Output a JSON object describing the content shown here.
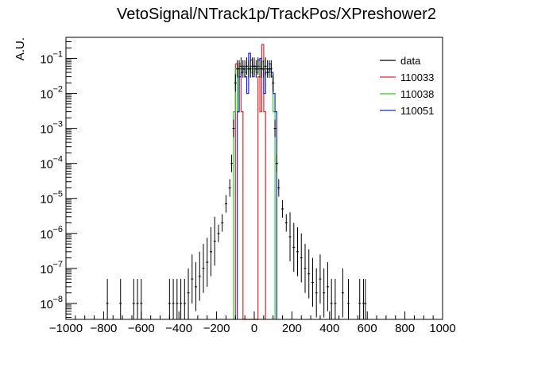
{
  "chart_data": {
    "type": "line",
    "title": "VetoSignal/NTrack1p/TrackPos/XPreshower2",
    "xlabel": "",
    "ylabel": "A.U.",
    "x_range": [
      -1000,
      1000
    ],
    "y_range_log": [
      3.5e-09,
      0.4
    ],
    "yscale": "log",
    "grid": false,
    "legend_position": "top-right",
    "x_ticks": [
      {
        "value": -1000,
        "label": "−1000"
      },
      {
        "value": -800,
        "label": "−800"
      },
      {
        "value": -600,
        "label": "−600"
      },
      {
        "value": -400,
        "label": "−400"
      },
      {
        "value": -200,
        "label": "−200"
      },
      {
        "value": 0,
        "label": "0"
      },
      {
        "value": 200,
        "label": "200"
      },
      {
        "value": 400,
        "label": "400"
      },
      {
        "value": 600,
        "label": "600"
      },
      {
        "value": 800,
        "label": "800"
      },
      {
        "value": 1000,
        "label": "1000"
      }
    ],
    "y_ticks": [
      {
        "exp": -8,
        "base": "10",
        "power": "−8"
      },
      {
        "exp": -7,
        "base": "10",
        "power": "−7"
      },
      {
        "exp": -6,
        "base": "10",
        "power": "−6"
      },
      {
        "exp": -5,
        "base": "10",
        "power": "−5"
      },
      {
        "exp": -4,
        "base": "10",
        "power": "−4"
      },
      {
        "exp": -3,
        "base": "10",
        "power": "−3"
      },
      {
        "exp": -2,
        "base": "10",
        "power": "−2"
      },
      {
        "exp": -1,
        "base": "10",
        "power": "−1"
      }
    ],
    "series": [
      {
        "name": "data",
        "style": "points",
        "color": "#000000",
        "points": [
          [
            -780,
            1e-08
          ],
          [
            -710,
            1e-08
          ],
          [
            -640,
            1e-08
          ],
          [
            -620,
            1e-08
          ],
          [
            -600,
            1e-08
          ],
          [
            -450,
            1e-08
          ],
          [
            -430,
            1e-08
          ],
          [
            -410,
            1e-08
          ],
          [
            -390,
            1e-08
          ],
          [
            -370,
            1e-08
          ],
          [
            -350,
            2e-08
          ],
          [
            -330,
            5e-08
          ],
          [
            -310,
            3e-08
          ],
          [
            -290,
            6e-08
          ],
          [
            -270,
            1e-07
          ],
          [
            -250,
            1.5e-07
          ],
          [
            -230,
            3e-07
          ],
          [
            -210,
            6e-07
          ],
          [
            -190,
            1e-06
          ],
          [
            -170,
            2e-06
          ],
          [
            -150,
            7e-06
          ],
          [
            -130,
            2e-05
          ],
          [
            -120,
            0.0001
          ],
          [
            -110,
            0.001
          ],
          [
            -100,
            0.02
          ],
          [
            -90,
            0.05
          ],
          [
            -80,
            0.05
          ],
          [
            -70,
            0.06
          ],
          [
            -60,
            0.05
          ],
          [
            -50,
            0.05
          ],
          [
            -40,
            0.06
          ],
          [
            -30,
            0.05
          ],
          [
            -20,
            0.05
          ],
          [
            -10,
            0.06
          ],
          [
            0,
            0.06
          ],
          [
            10,
            0.05
          ],
          [
            20,
            0.06
          ],
          [
            30,
            0.05
          ],
          [
            40,
            0.05
          ],
          [
            50,
            0.05
          ],
          [
            60,
            0.06
          ],
          [
            70,
            0.05
          ],
          [
            80,
            0.05
          ],
          [
            90,
            0.05
          ],
          [
            100,
            0.02
          ],
          [
            110,
            0.001
          ],
          [
            120,
            0.0001
          ],
          [
            130,
            2e-05
          ],
          [
            150,
            5e-06
          ],
          [
            170,
            2e-06
          ],
          [
            190,
            8e-07
          ],
          [
            210,
            4e-07
          ],
          [
            230,
            3e-07
          ],
          [
            250,
            2e-07
          ],
          [
            270,
            1e-07
          ],
          [
            290,
            7e-08
          ],
          [
            310,
            4e-08
          ],
          [
            330,
            2e-08
          ],
          [
            350,
            5e-08
          ],
          [
            370,
            2e-08
          ],
          [
            390,
            3e-08
          ],
          [
            410,
            1e-08
          ],
          [
            430,
            1e-08
          ],
          [
            470,
            2e-08
          ],
          [
            500,
            1e-08
          ],
          [
            560,
            1e-08
          ],
          [
            580,
            1e-08
          ],
          [
            590,
            1e-08
          ]
        ]
      },
      {
        "name": "110033",
        "style": "hist",
        "color": "#e8262a",
        "edges": [
          -100,
          -90,
          -80,
          -70,
          -60,
          20,
          30,
          40,
          50,
          60
        ],
        "values": [
          0.07,
          0.003,
          0.07,
          0.003,
          0.0,
          0.03,
          0.003,
          0.25,
          0.003
        ]
      },
      {
        "name": "110038",
        "style": "hist",
        "color": "#22d422",
        "edges": [
          -110,
          -100,
          -90,
          -80,
          -70,
          -60,
          -50,
          -40,
          -30,
          -20,
          -10,
          0,
          10,
          20,
          30,
          40,
          50,
          60,
          70,
          80,
          90,
          100,
          110
        ],
        "values": [
          0.003,
          0.05,
          0.003,
          0.06,
          0.05,
          0.05,
          0.04,
          0.05,
          0.06,
          0.04,
          0.05,
          0.05,
          0.04,
          0.05,
          0.06,
          0.08,
          0.05,
          0.05,
          0.04,
          0.05,
          0.03,
          0.003
        ]
      },
      {
        "name": "110051",
        "style": "hist",
        "color": "#1f27c8",
        "edges": [
          -90,
          -80,
          -70,
          -60,
          -50,
          -40,
          -30,
          -20,
          -10,
          0,
          10,
          20,
          30,
          40,
          50,
          60,
          70,
          80,
          90,
          100,
          110,
          120
        ],
        "values": [
          0.003,
          0.03,
          0.04,
          0.06,
          0.03,
          0.01,
          0.14,
          0.09,
          0.03,
          0.06,
          0.05,
          0.09,
          0.1,
          0.05,
          0.01,
          0.04,
          0.04,
          0.07,
          0.04,
          0.01,
          0.003
        ]
      }
    ]
  }
}
